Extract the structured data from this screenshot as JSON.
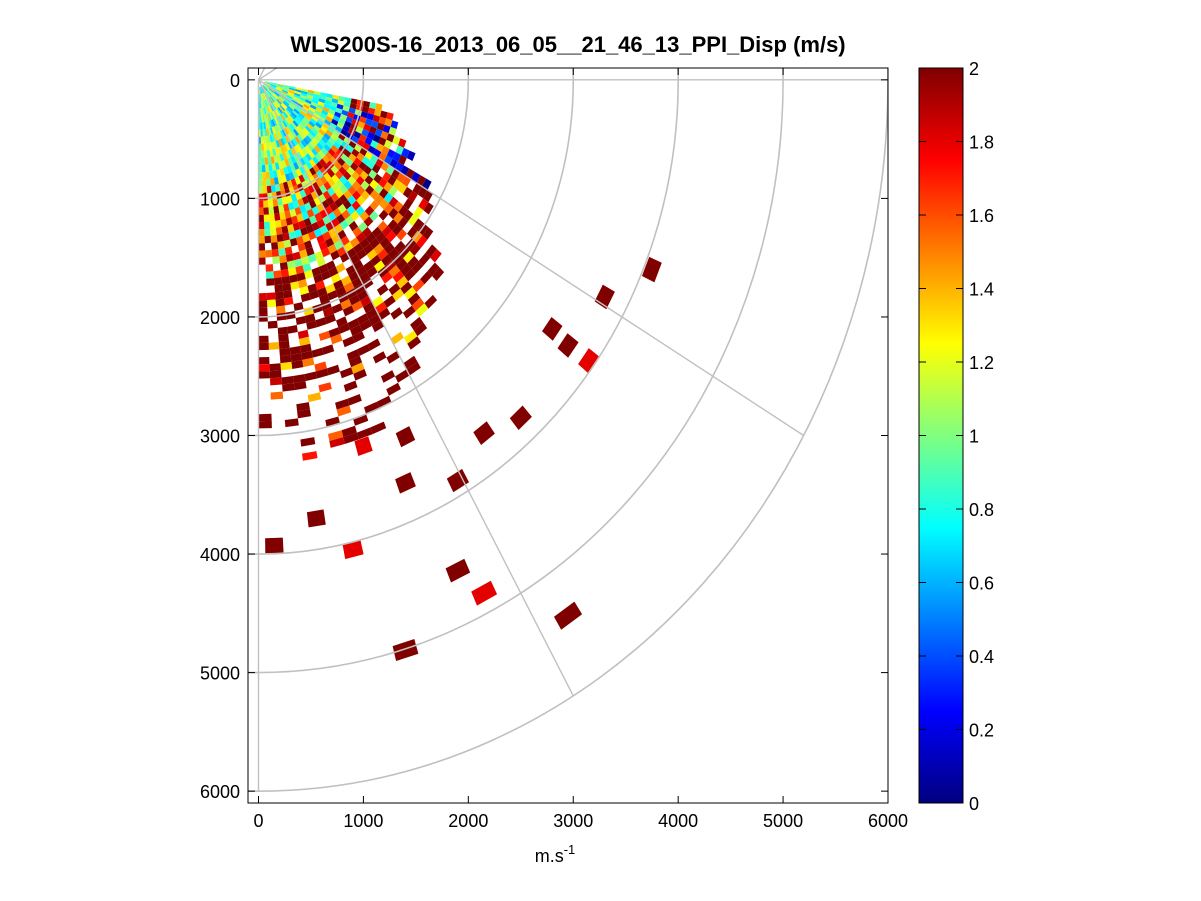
{
  "chart_data": {
    "type": "heatmap",
    "subtype": "polar-ppi-scan",
    "title": "WLS200S-16_2013_06_05__21_46_13_PPI_Disp (m/s)",
    "xlabel": "m.s",
    "xlabel_superscript": "-1",
    "xlim": [
      -100,
      6000
    ],
    "ylim": [
      -100,
      6100
    ],
    "y_axis_direction": "down",
    "x_ticks": [
      0,
      1000,
      2000,
      3000,
      4000,
      5000,
      6000
    ],
    "y_ticks": [
      0,
      1000,
      2000,
      3000,
      4000,
      5000,
      6000
    ],
    "x_tick_labels": [
      "0",
      "1000",
      "2000",
      "3000",
      "4000",
      "5000",
      "6000"
    ],
    "y_tick_labels": [
      "0",
      "1000",
      "2000",
      "3000",
      "4000",
      "5000",
      "6000"
    ],
    "polar_grid": {
      "ring_radii": [
        1000,
        2000,
        3000,
        4000,
        5000,
        6000
      ],
      "spoke_angles_deg": [
        -60,
        -30,
        0,
        30,
        60,
        90
      ]
    },
    "colorbar": {
      "colormap": "jet",
      "range": [
        0,
        2
      ],
      "ticks": [
        0,
        0.2,
        0.4,
        0.6,
        0.8,
        1,
        1.2,
        1.4,
        1.6,
        1.8,
        2
      ],
      "tick_labels": [
        "0",
        "0.2",
        "0.4",
        "0.6",
        "0.8",
        "1",
        "1.2",
        "1.4",
        "1.6",
        "1.8",
        "2"
      ]
    },
    "scan": {
      "sector_start_deg": 10,
      "sector_end_deg": 90,
      "angular_step_deg": 2.5,
      "range_gate_m": 60,
      "dense_region_max_range_m": 3100,
      "approx_distribution": "near-range values mostly 0.6–1.4 m/s (cyan–yellow), band of low values 0–0.4 m/s at ~1000–1800 m range near 20°, far ranges mostly saturated at 2 m/s"
    },
    "isolated_points": [
      {
        "x": 3750,
        "y": 1600,
        "value": 2.0
      },
      {
        "x": 3300,
        "y": 1830,
        "value": 2.0
      },
      {
        "x": 3150,
        "y": 2370,
        "value": 1.8
      },
      {
        "x": 2950,
        "y": 2240,
        "value": 2.0
      },
      {
        "x": 2800,
        "y": 2100,
        "value": 2.0
      },
      {
        "x": 2500,
        "y": 2850,
        "value": 2.0
      },
      {
        "x": 2150,
        "y": 2980,
        "value": 2.0
      },
      {
        "x": 1900,
        "y": 3380,
        "value": 2.0
      },
      {
        "x": 1400,
        "y": 3400,
        "value": 2.0
      },
      {
        "x": 1400,
        "y": 3010,
        "value": 2.0
      },
      {
        "x": 1000,
        "y": 3090,
        "value": 1.8
      },
      {
        "x": 550,
        "y": 3700,
        "value": 2.0
      },
      {
        "x": 150,
        "y": 3930,
        "value": 2.0
      },
      {
        "x": 900,
        "y": 3960,
        "value": 1.8
      },
      {
        "x": 1900,
        "y": 4140,
        "value": 2.0
      },
      {
        "x": 2150,
        "y": 4330,
        "value": 1.8
      },
      {
        "x": 2950,
        "y": 4520,
        "value": 2.0
      },
      {
        "x": 1400,
        "y": 4810,
        "value": 2.0
      }
    ]
  }
}
